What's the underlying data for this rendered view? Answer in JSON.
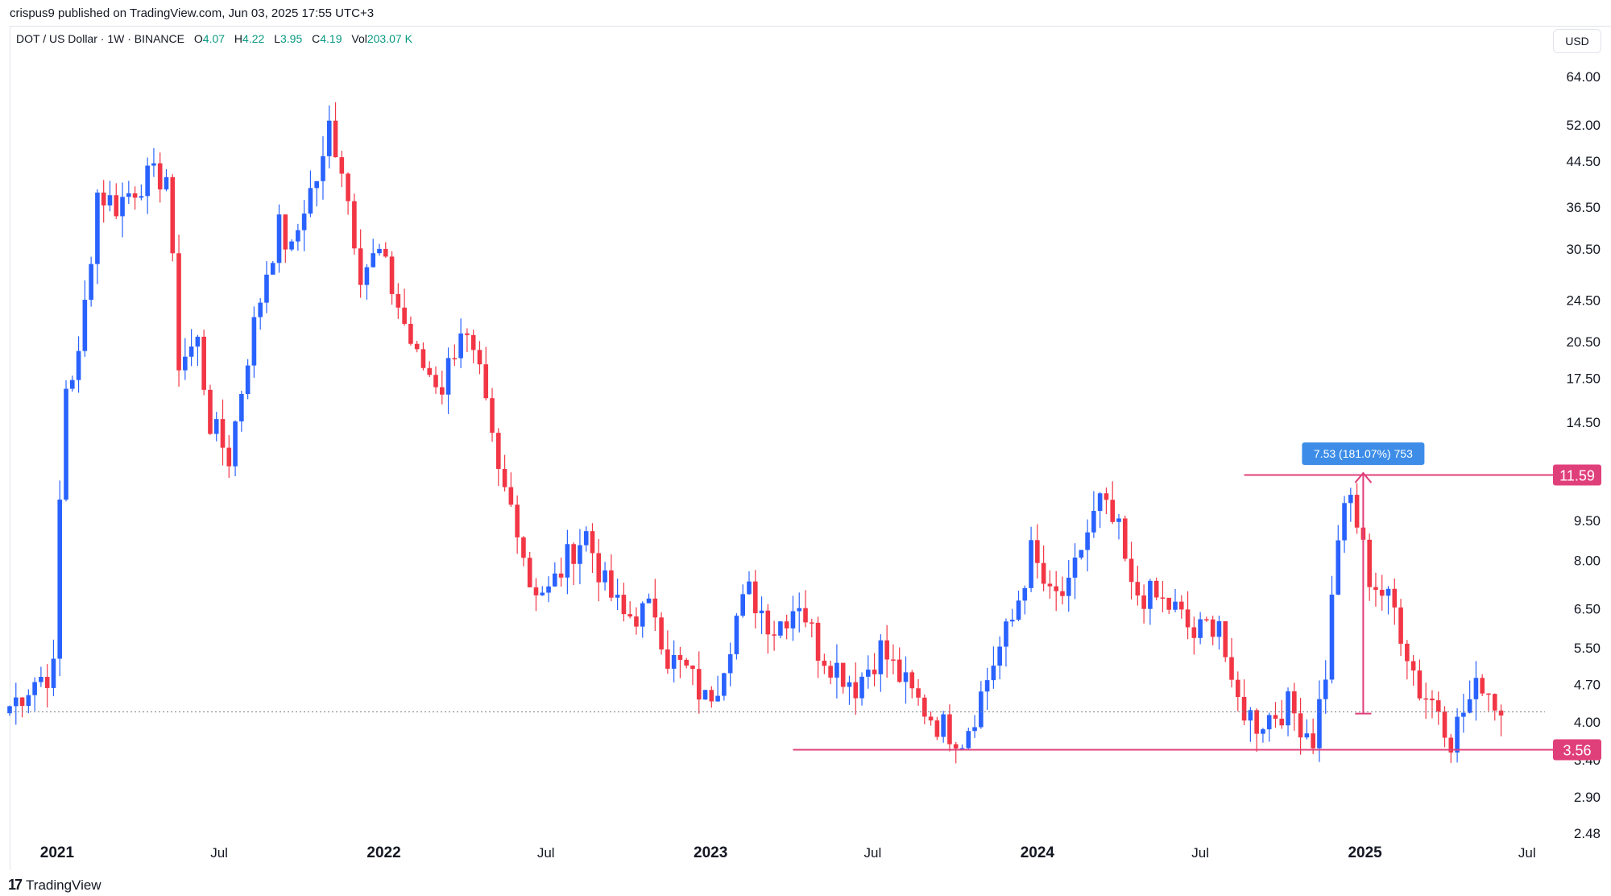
{
  "publisher_line": "crispus9 published on TradingView.com, Jun 03, 2025 17:55 UTC+3",
  "legend": {
    "symbol": "DOT / US Dollar · 1W · BINANCE",
    "open_label": "O",
    "open": "4.07",
    "high_label": "H",
    "high": "4.22",
    "low_label": "L",
    "low": "3.95",
    "close_label": "C",
    "close": "4.19",
    "vol_label": "Vol",
    "vol": "203.07 K"
  },
  "currency": "USD",
  "brand": "TradingView",
  "colors": {
    "up": "#2962ff",
    "down": "#f23645",
    "level": "#e0407a",
    "measure_box": "#3d8de8",
    "last_price_line": "#787b86"
  },
  "chart_data": {
    "type": "candlestick",
    "symbol": "DOT/USD",
    "interval": "1W",
    "scale": "log",
    "ylim": [
      2.48,
      70
    ],
    "y_ticks": [
      "64.00",
      "52.00",
      "44.50",
      "36.50",
      "30.50",
      "24.50",
      "20.50",
      "17.50",
      "14.50",
      "9.50",
      "8.00",
      "6.50",
      "5.50",
      "4.70",
      "4.00",
      "3.40",
      "2.90",
      "2.48"
    ],
    "x_ticks": [
      "2021",
      "Jul",
      "2022",
      "Jul",
      "2023",
      "Jul",
      "2024",
      "Jul",
      "2025",
      "Jul"
    ],
    "x_range": [
      "2020-11-09",
      "2025-07-21"
    ],
    "last_close": 4.19,
    "price_levels": [
      {
        "label": "11.59",
        "value": 11.59,
        "from": "2024-08-19"
      },
      {
        "label": "3.56",
        "value": 3.56,
        "from": "2023-04-03"
      }
    ],
    "measurement": {
      "label": "7.53 (181.07%) 753",
      "date": "2024-12-30",
      "from": 4.16,
      "to": 11.69
    },
    "closes": [
      {
        "date": "2020-11-09",
        "value": 4.3
      },
      {
        "date": "2020-12-07",
        "value": 4.8
      },
      {
        "date": "2020-12-28",
        "value": 5.0
      },
      {
        "date": "2021-01-04",
        "value": 10.3
      },
      {
        "date": "2021-01-11",
        "value": 17.0
      },
      {
        "date": "2021-01-25",
        "value": 19.0
      },
      {
        "date": "2021-02-08",
        "value": 30.5
      },
      {
        "date": "2021-02-15",
        "value": 39.0
      },
      {
        "date": "2021-03-08",
        "value": 37.0
      },
      {
        "date": "2021-04-05",
        "value": 41.0
      },
      {
        "date": "2021-05-03",
        "value": 42.0
      },
      {
        "date": "2021-05-17",
        "value": 19.0
      },
      {
        "date": "2021-06-07",
        "value": 20.5
      },
      {
        "date": "2021-06-21",
        "value": 14.5
      },
      {
        "date": "2021-07-12",
        "value": 12.5
      },
      {
        "date": "2021-08-02",
        "value": 19.5
      },
      {
        "date": "2021-08-23",
        "value": 28.0
      },
      {
        "date": "2021-09-06",
        "value": 33.5
      },
      {
        "date": "2021-09-20",
        "value": 30.0
      },
      {
        "date": "2021-10-04",
        "value": 37.0
      },
      {
        "date": "2021-10-25",
        "value": 44.0
      },
      {
        "date": "2021-11-01",
        "value": 52.0
      },
      {
        "date": "2021-11-15",
        "value": 44.0
      },
      {
        "date": "2021-12-06",
        "value": 28.0
      },
      {
        "date": "2021-12-27",
        "value": 30.0
      },
      {
        "date": "2022-01-17",
        "value": 24.0
      },
      {
        "date": "2022-02-07",
        "value": 19.0
      },
      {
        "date": "2022-03-07",
        "value": 17.0
      },
      {
        "date": "2022-03-28",
        "value": 22.0
      },
      {
        "date": "2022-04-18",
        "value": 17.5
      },
      {
        "date": "2022-05-09",
        "value": 11.5
      },
      {
        "date": "2022-05-30",
        "value": 9.5
      },
      {
        "date": "2022-06-13",
        "value": 7.3
      },
      {
        "date": "2022-07-04",
        "value": 7.0
      },
      {
        "date": "2022-08-01",
        "value": 8.5
      },
      {
        "date": "2022-08-15",
        "value": 9.0
      },
      {
        "date": "2022-09-05",
        "value": 7.2
      },
      {
        "date": "2022-09-26",
        "value": 6.3
      },
      {
        "date": "2022-10-31",
        "value": 6.5
      },
      {
        "date": "2022-11-14",
        "value": 5.3
      },
      {
        "date": "2022-12-05",
        "value": 5.0
      },
      {
        "date": "2022-12-26",
        "value": 4.4
      },
      {
        "date": "2023-01-09",
        "value": 4.8
      },
      {
        "date": "2023-01-30",
        "value": 6.3
      },
      {
        "date": "2023-02-13",
        "value": 7.0
      },
      {
        "date": "2023-03-13",
        "value": 6.0
      },
      {
        "date": "2023-04-10",
        "value": 6.8
      },
      {
        "date": "2023-05-01",
        "value": 5.5
      },
      {
        "date": "2023-06-12",
        "value": 4.7
      },
      {
        "date": "2023-07-10",
        "value": 5.5
      },
      {
        "date": "2023-08-14",
        "value": 4.5
      },
      {
        "date": "2023-09-11",
        "value": 4.0
      },
      {
        "date": "2023-10-09",
        "value": 3.75
      },
      {
        "date": "2023-10-23",
        "value": 4.2
      },
      {
        "date": "2023-11-13",
        "value": 5.2
      },
      {
        "date": "2023-12-04",
        "value": 6.2
      },
      {
        "date": "2023-12-25",
        "value": 8.3
      },
      {
        "date": "2024-01-15",
        "value": 6.8
      },
      {
        "date": "2024-02-05",
        "value": 7.0
      },
      {
        "date": "2024-02-19",
        "value": 8.5
      },
      {
        "date": "2024-03-11",
        "value": 10.3
      },
      {
        "date": "2024-04-01",
        "value": 9.0
      },
      {
        "date": "2024-04-15",
        "value": 7.0
      },
      {
        "date": "2024-05-06",
        "value": 6.9
      },
      {
        "date": "2024-06-03",
        "value": 6.5
      },
      {
        "date": "2024-06-24",
        "value": 5.8
      },
      {
        "date": "2024-07-22",
        "value": 6.3
      },
      {
        "date": "2024-08-05",
        "value": 4.5
      },
      {
        "date": "2024-09-02",
        "value": 4.0
      },
      {
        "date": "2024-10-07",
        "value": 4.3
      },
      {
        "date": "2024-11-04",
        "value": 3.75
      },
      {
        "date": "2024-11-18",
        "value": 5.0
      },
      {
        "date": "2024-12-02",
        "value": 9.0
      },
      {
        "date": "2024-12-16",
        "value": 10.5
      },
      {
        "date": "2025-01-06",
        "value": 7.5
      },
      {
        "date": "2025-02-03",
        "value": 6.5
      },
      {
        "date": "2025-03-03",
        "value": 4.6
      },
      {
        "date": "2025-03-24",
        "value": 4.3
      },
      {
        "date": "2025-04-07",
        "value": 3.75
      },
      {
        "date": "2025-04-21",
        "value": 4.2
      },
      {
        "date": "2025-05-12",
        "value": 4.8
      },
      {
        "date": "2025-06-02",
        "value": 4.19
      }
    ]
  }
}
